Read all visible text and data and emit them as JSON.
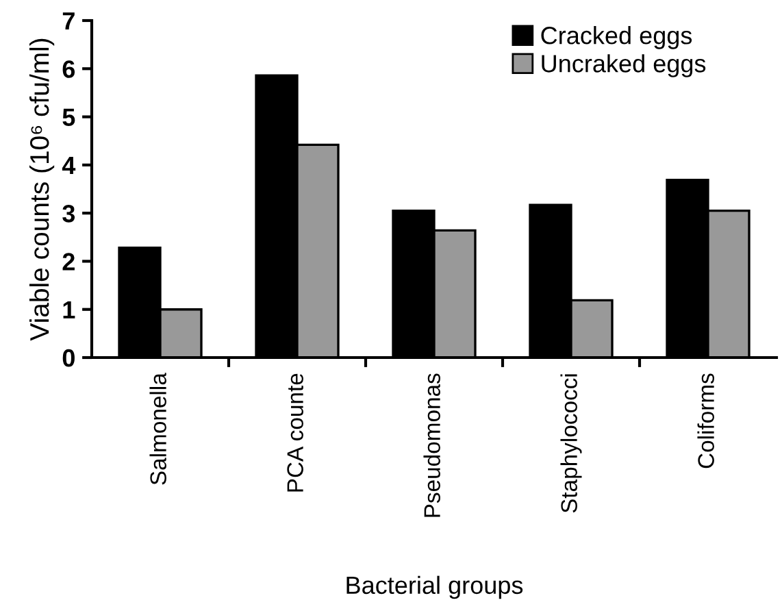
{
  "chart_data": {
    "type": "bar",
    "xlabel": "Bacterial groups",
    "ylabel": "Viable counts (10⁶ cfu/ml)",
    "categories": [
      "Salmonella",
      "PCA counte",
      "Pseudomonas",
      "Staphylococci",
      "Coliforms"
    ],
    "series": [
      {
        "name": "Cracked eggs",
        "color": "#000000",
        "values": [
          2.28,
          5.86,
          3.05,
          3.17,
          3.69
        ]
      },
      {
        "name": "Uncraked eggs",
        "color": "#999999",
        "values": [
          1.0,
          4.42,
          2.64,
          1.19,
          3.05
        ]
      }
    ],
    "ylim": [
      0,
      7
    ],
    "yticks": [
      0,
      1,
      2,
      3,
      4,
      5,
      6,
      7
    ],
    "grid": false,
    "legend": "top right"
  }
}
